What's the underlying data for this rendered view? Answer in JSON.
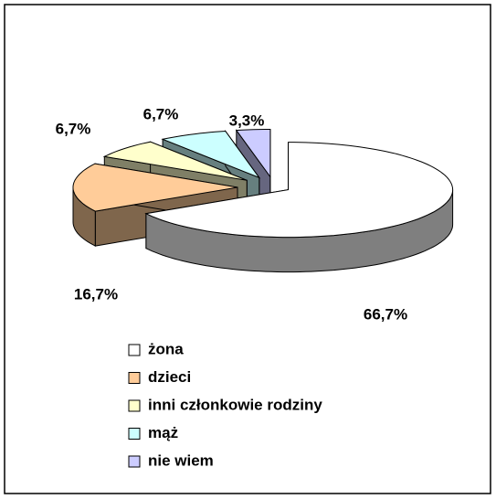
{
  "chart_data": {
    "type": "pie3d",
    "categories": [
      "żona",
      "dzieci",
      "inni członkowie rodziny",
      "mąż",
      "nie wiem"
    ],
    "values": [
      66.7,
      16.7,
      6.7,
      6.7,
      3.3
    ],
    "value_labels": [
      "66,7%",
      "16,7%",
      "6,7%",
      "6,7%",
      "3,3%"
    ],
    "colors": [
      "#ffffff",
      "#ffcc99",
      "#ffffcc",
      "#ccffff",
      "#ccccff"
    ],
    "legend": "bottom"
  }
}
